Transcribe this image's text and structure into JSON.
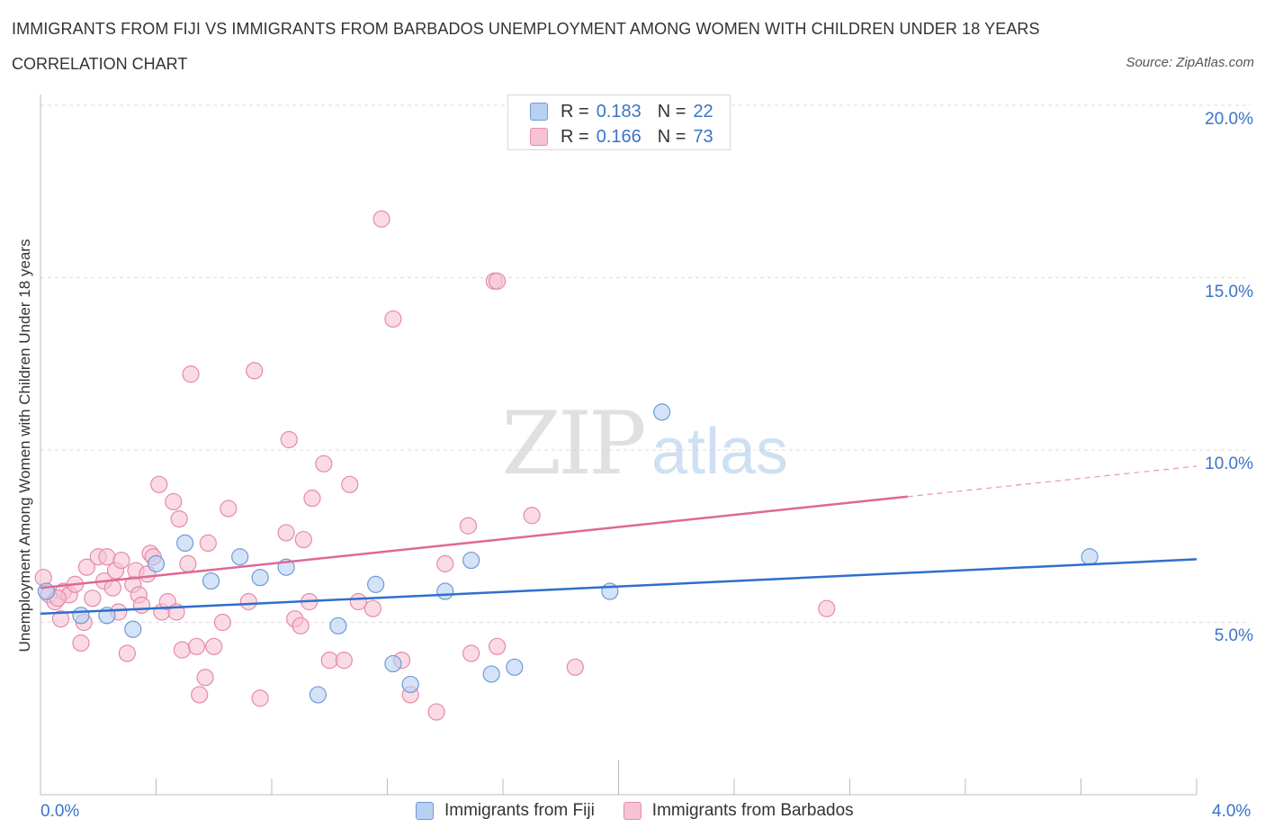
{
  "header": {
    "title": "IMMIGRANTS FROM FIJI VS IMMIGRANTS FROM BARBADOS UNEMPLOYMENT AMONG WOMEN WITH CHILDREN UNDER 18 YEARS",
    "subtitle": "CORRELATION CHART",
    "source": "Source: ZipAtlas.com"
  },
  "legend": {
    "fiji": {
      "r_label": "R =",
      "r_value": "0.183",
      "n_label": "N =",
      "n_value": "22"
    },
    "barbados": {
      "r_label": "R =",
      "r_value": "0.166",
      "n_label": "N =",
      "n_value": "73"
    }
  },
  "bottom_legend": {
    "fiji": "Immigrants from Fiji",
    "barbados": "Immigrants from Barbados"
  },
  "watermark": {
    "zip": "ZIP",
    "atlas": "atlas"
  },
  "colors": {
    "fiji_fill": "#b8d1f2",
    "fiji_stroke": "#6f9ad8",
    "fiji_line": "#2f6fcb",
    "barbados_fill": "#f7c3d3",
    "barbados_stroke": "#e58aa9",
    "barbados_line": "#e06794",
    "axis_text": "#3a74c8",
    "grid": "#dddddd"
  },
  "chart_data": {
    "type": "scatter",
    "title": "IMMIGRANTS FROM FIJI VS IMMIGRANTS FROM BARBADOS UNEMPLOYMENT AMONG WOMEN WITH CHILDREN UNDER 18 YEARS",
    "xlabel": "",
    "ylabel": "Unemployment Among Women with Children Under 18 years",
    "xlim": [
      0,
      4.0
    ],
    "ylim": [
      0,
      20.0
    ],
    "x_tick_labels": [
      "0.0%",
      "4.0%"
    ],
    "y_ticks": [
      5,
      10,
      15,
      20
    ],
    "y_tick_labels": [
      "5.0%",
      "10.0%",
      "15.0%",
      "20.0%"
    ],
    "grid": true,
    "legend_position": "top-center",
    "series": [
      {
        "name": "Immigrants from Fiji",
        "R": 0.183,
        "N": 22,
        "trend": {
          "x0": 0.0,
          "y0": 5.25,
          "x1": 4.0,
          "y1": 6.83
        },
        "points": [
          {
            "x": 0.02,
            "y": 5.9
          },
          {
            "x": 0.14,
            "y": 5.2
          },
          {
            "x": 0.23,
            "y": 5.2
          },
          {
            "x": 0.32,
            "y": 4.8
          },
          {
            "x": 0.4,
            "y": 6.7
          },
          {
            "x": 0.5,
            "y": 7.3
          },
          {
            "x": 0.59,
            "y": 6.2
          },
          {
            "x": 0.69,
            "y": 6.9
          },
          {
            "x": 0.76,
            "y": 6.3
          },
          {
            "x": 0.85,
            "y": 6.6
          },
          {
            "x": 0.96,
            "y": 2.9
          },
          {
            "x": 1.03,
            "y": 4.9
          },
          {
            "x": 1.16,
            "y": 6.1
          },
          {
            "x": 1.22,
            "y": 3.8
          },
          {
            "x": 1.28,
            "y": 3.2
          },
          {
            "x": 1.4,
            "y": 5.9
          },
          {
            "x": 1.49,
            "y": 6.8
          },
          {
            "x": 1.56,
            "y": 3.5
          },
          {
            "x": 1.64,
            "y": 3.7
          },
          {
            "x": 1.97,
            "y": 5.9
          },
          {
            "x": 2.15,
            "y": 11.1
          },
          {
            "x": 3.63,
            "y": 6.9
          }
        ]
      },
      {
        "name": "Immigrants from Barbados",
        "R": 0.166,
        "N": 73,
        "trend": {
          "x0": 0.0,
          "y0": 6.0,
          "x1": 4.0,
          "y1": 9.53,
          "solid_until_x": 3.0
        },
        "points": [
          {
            "x": 0.01,
            "y": 6.3
          },
          {
            "x": 0.03,
            "y": 5.8
          },
          {
            "x": 0.05,
            "y": 5.6
          },
          {
            "x": 0.07,
            "y": 5.1
          },
          {
            "x": 0.08,
            "y": 5.9
          },
          {
            "x": 0.1,
            "y": 5.8
          },
          {
            "x": 0.12,
            "y": 6.1
          },
          {
            "x": 0.14,
            "y": 4.4
          },
          {
            "x": 0.16,
            "y": 6.6
          },
          {
            "x": 0.18,
            "y": 5.7
          },
          {
            "x": 0.2,
            "y": 6.9
          },
          {
            "x": 0.22,
            "y": 6.2
          },
          {
            "x": 0.23,
            "y": 6.9
          },
          {
            "x": 0.25,
            "y": 6.0
          },
          {
            "x": 0.26,
            "y": 6.5
          },
          {
            "x": 0.27,
            "y": 5.3
          },
          {
            "x": 0.28,
            "y": 6.8
          },
          {
            "x": 0.3,
            "y": 4.1
          },
          {
            "x": 0.32,
            "y": 6.1
          },
          {
            "x": 0.33,
            "y": 6.5
          },
          {
            "x": 0.34,
            "y": 5.8
          },
          {
            "x": 0.35,
            "y": 5.5
          },
          {
            "x": 0.37,
            "y": 6.4
          },
          {
            "x": 0.38,
            "y": 7.0
          },
          {
            "x": 0.39,
            "y": 6.9
          },
          {
            "x": 0.41,
            "y": 9.0
          },
          {
            "x": 0.42,
            "y": 5.3
          },
          {
            "x": 0.44,
            "y": 5.6
          },
          {
            "x": 0.46,
            "y": 8.5
          },
          {
            "x": 0.47,
            "y": 5.3
          },
          {
            "x": 0.48,
            "y": 8.0
          },
          {
            "x": 0.49,
            "y": 4.2
          },
          {
            "x": 0.51,
            "y": 6.7
          },
          {
            "x": 0.52,
            "y": 12.2
          },
          {
            "x": 0.54,
            "y": 4.3
          },
          {
            "x": 0.55,
            "y": 2.9
          },
          {
            "x": 0.57,
            "y": 3.4
          },
          {
            "x": 0.58,
            "y": 7.3
          },
          {
            "x": 0.6,
            "y": 4.3
          },
          {
            "x": 0.63,
            "y": 5.0
          },
          {
            "x": 0.65,
            "y": 8.3
          },
          {
            "x": 0.72,
            "y": 5.6
          },
          {
            "x": 0.74,
            "y": 12.3
          },
          {
            "x": 0.76,
            "y": 2.8
          },
          {
            "x": 0.85,
            "y": 7.6
          },
          {
            "x": 0.86,
            "y": 10.3
          },
          {
            "x": 0.88,
            "y": 5.1
          },
          {
            "x": 0.9,
            "y": 4.9
          },
          {
            "x": 0.91,
            "y": 7.4
          },
          {
            "x": 0.93,
            "y": 5.6
          },
          {
            "x": 0.94,
            "y": 8.6
          },
          {
            "x": 0.98,
            "y": 9.6
          },
          {
            "x": 1.0,
            "y": 3.9
          },
          {
            "x": 1.05,
            "y": 3.9
          },
          {
            "x": 1.07,
            "y": 9.0
          },
          {
            "x": 1.1,
            "y": 5.6
          },
          {
            "x": 1.15,
            "y": 5.4
          },
          {
            "x": 1.18,
            "y": 16.7
          },
          {
            "x": 1.22,
            "y": 13.8
          },
          {
            "x": 1.25,
            "y": 3.9
          },
          {
            "x": 1.28,
            "y": 2.9
          },
          {
            "x": 1.37,
            "y": 2.4
          },
          {
            "x": 1.4,
            "y": 6.7
          },
          {
            "x": 1.48,
            "y": 7.8
          },
          {
            "x": 1.49,
            "y": 4.1
          },
          {
            "x": 1.57,
            "y": 14.9
          },
          {
            "x": 1.58,
            "y": 14.9
          },
          {
            "x": 1.58,
            "y": 4.3
          },
          {
            "x": 1.7,
            "y": 8.1
          },
          {
            "x": 1.85,
            "y": 3.7
          },
          {
            "x": 2.72,
            "y": 5.4
          },
          {
            "x": 0.06,
            "y": 5.7
          },
          {
            "x": 0.15,
            "y": 5.0
          }
        ]
      }
    ]
  }
}
